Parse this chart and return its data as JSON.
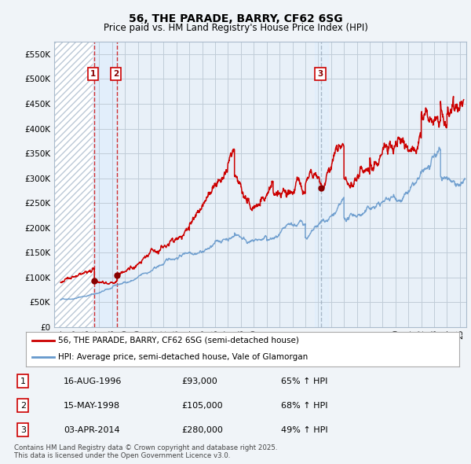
{
  "title": "56, THE PARADE, BARRY, CF62 6SG",
  "subtitle": "Price paid vs. HM Land Registry's House Price Index (HPI)",
  "ylim": [
    0,
    575000
  ],
  "yticks": [
    0,
    50000,
    100000,
    150000,
    200000,
    250000,
    300000,
    350000,
    400000,
    450000,
    500000,
    550000
  ],
  "xlim_start": 1993.5,
  "xlim_end": 2025.5,
  "red_line_color": "#cc0000",
  "blue_line_color": "#6699cc",
  "grid_color": "#bbccdd",
  "bg_hatch_color": "#dde8ee",
  "sale_markers": [
    {
      "year": 1996.623,
      "price": 93000,
      "label": "1",
      "vline_color": "#dd0000",
      "vline_style": "--",
      "shade_color": "#ddeeff"
    },
    {
      "year": 1998.372,
      "price": 105000,
      "label": "2",
      "vline_color": "#dd0000",
      "vline_style": "--",
      "shade_color": "#ddeeff"
    },
    {
      "year": 2014.253,
      "price": 280000,
      "label": "3",
      "vline_color": "#8899aa",
      "vline_style": "--",
      "shade_color": "#ddeeff"
    }
  ],
  "legend_line1": "56, THE PARADE, BARRY, CF62 6SG (semi-detached house)",
  "legend_line2": "HPI: Average price, semi-detached house, Vale of Glamorgan",
  "table_data": [
    {
      "num": "1",
      "date": "16-AUG-1996",
      "price": "£93,000",
      "hpi": "65% ↑ HPI"
    },
    {
      "num": "2",
      "date": "15-MAY-1998",
      "price": "£105,000",
      "hpi": "68% ↑ HPI"
    },
    {
      "num": "3",
      "date": "03-APR-2014",
      "price": "£280,000",
      "hpi": "49% ↑ HPI"
    }
  ],
  "footnote": "Contains HM Land Registry data © Crown copyright and database right 2025.\nThis data is licensed under the Open Government Licence v3.0."
}
